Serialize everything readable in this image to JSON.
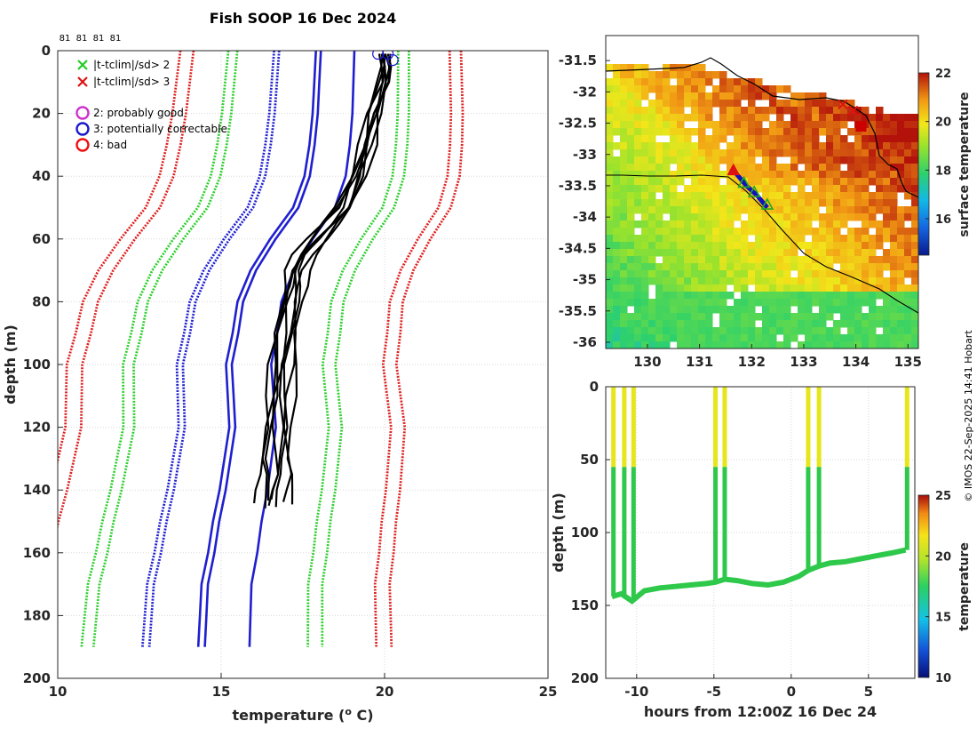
{
  "chart_data": [
    {
      "type": "line",
      "title": "Fish SOOP 16 Dec 2024",
      "xlabel": "temperature (",
      "xlabel_sup": "o",
      "xlabel_tail": " C)",
      "ylabel": "depth (m)",
      "xlim": [
        10,
        25
      ],
      "ylim": [
        0,
        200
      ],
      "xticks": [
        "10",
        "15",
        "20",
        "25"
      ],
      "yticks": [
        "0",
        "20",
        "40",
        "60",
        "80",
        "100",
        "120",
        "140",
        "160",
        "180",
        "200"
      ],
      "top_counts": [
        "81",
        "81",
        "81",
        "81"
      ],
      "legend": [
        {
          "marker": "x",
          "color": "#22cc22",
          "label": "|t-tclim|/sd> 2"
        },
        {
          "marker": "x",
          "color": "#dd1111",
          "label": "|t-tclim|/sd> 3"
        },
        {
          "marker": "o",
          "color": "#cc33cc",
          "label": "2: probably good"
        },
        {
          "marker": "o",
          "color": "#1a1acc",
          "label": "3: potentially correctable"
        },
        {
          "marker": "o",
          "color": "#ee1111",
          "label": "4: bad"
        }
      ],
      "series": [
        {
          "name": "clim-mean",
          "style": "solid",
          "color": "#1f1fd0",
          "offset": 0,
          "depth": [
            0,
            10,
            20,
            30,
            40,
            50,
            60,
            70,
            80,
            90,
            100,
            110,
            120,
            130,
            140,
            150,
            160,
            170,
            180,
            190
          ],
          "temp": [
            17.9,
            17.85,
            17.8,
            17.7,
            17.55,
            17.2,
            16.5,
            15.9,
            15.5,
            15.35,
            15.15,
            15.2,
            15.25,
            15.1,
            14.95,
            14.75,
            14.6,
            14.4,
            14.35,
            14.3
          ]
        },
        {
          "name": "clim-mean-b",
          "style": "solid",
          "color": "#1f1fd0",
          "offset": 0.15,
          "depth": [],
          "temp": []
        },
        {
          "name": "clim-1sd-low",
          "style": "dotted",
          "color": "#1f1fd0",
          "offset": -1.1,
          "depth": [],
          "temp": []
        },
        {
          "name": "clim-1sd-low-b",
          "style": "dotted",
          "color": "#1f1fd0",
          "offset": -1.25,
          "depth": [],
          "temp": []
        },
        {
          "name": "clim-1sd-high",
          "style": "solid",
          "color": "#1f1fd0",
          "offset": 1.15,
          "depth": [],
          "temp": []
        },
        {
          "name": "clim-2sd-low",
          "style": "dotted",
          "color": "#2fcf2f",
          "offset": -2.3,
          "depth": [],
          "temp": []
        },
        {
          "name": "clim-2sd-low-b",
          "style": "dotted",
          "color": "#2fcf2f",
          "offset": -2.55,
          "depth": [],
          "temp": []
        },
        {
          "name": "clim-2sd-high",
          "style": "dotted",
          "color": "#2fcf2f",
          "offset": 2.4,
          "depth": [],
          "temp": []
        },
        {
          "name": "clim-2sd-high-b",
          "style": "dotted",
          "color": "#2fcf2f",
          "offset": 2.7,
          "depth": [],
          "temp": []
        },
        {
          "name": "clim-3sd-low",
          "style": "dotted",
          "color": "#dd2222",
          "offset": -3.5,
          "depth": [],
          "temp": []
        },
        {
          "name": "clim-3sd-low-b",
          "style": "dotted",
          "color": "#dd2222",
          "offset": -3.85,
          "depth": [],
          "temp": []
        },
        {
          "name": "clim-3sd-high",
          "style": "dotted",
          "color": "#dd2222",
          "offset": 3.8,
          "depth": [],
          "temp": []
        },
        {
          "name": "clim-3sd-high-b",
          "style": "dotted",
          "color": "#dd2222",
          "offset": 4.1,
          "depth": [],
          "temp": []
        }
      ],
      "obs_profile": {
        "color": "#000000",
        "depth": [
          1,
          5,
          10,
          20,
          30,
          40,
          50,
          55,
          60,
          65,
          70,
          75,
          80,
          90,
          100,
          110,
          120,
          130,
          135,
          140,
          143
        ],
        "temp": [
          20.0,
          20.05,
          20.0,
          19.7,
          19.5,
          19.2,
          18.8,
          18.4,
          18.0,
          17.6,
          17.35,
          17.3,
          17.2,
          17.05,
          16.95,
          16.85,
          16.8,
          16.75,
          16.8,
          16.7,
          16.65
        ],
        "copies": [
          0,
          -0.25,
          0.2,
          -0.45,
          0.35,
          -0.15,
          0.1,
          -0.35
        ],
        "flag_points": [
          [
            19.8,
            1
          ],
          [
            20.1,
            1
          ],
          [
            20.25,
            3
          ]
        ]
      }
    },
    {
      "type": "heatmap",
      "kind": "map",
      "colorbar_label": "surface temperature",
      "colorbar_ticks": [
        "16",
        "18",
        "20",
        "22"
      ],
      "clim": [
        14.5,
        22
      ],
      "xlim": [
        129.2,
        135.2
      ],
      "ylim": [
        -36.1,
        -31.1
      ],
      "xticks": [
        "130",
        "131",
        "132",
        "133",
        "134",
        "135"
      ],
      "yticks": [
        "-31.5",
        "-32",
        "-32.5",
        "-33",
        "-33.5",
        "-34",
        "-34.5",
        "-35",
        "-35.5",
        "-36"
      ],
      "track": [
        [
          131.65,
          -33.25
        ],
        [
          131.9,
          -33.5
        ],
        [
          132.1,
          -33.65
        ],
        [
          132.3,
          -33.85
        ]
      ],
      "markers": [
        {
          "lon": 131.65,
          "lat": -33.25,
          "shape": "triangle",
          "color": "#dd1111"
        },
        {
          "lon": 131.85,
          "lat": -33.45,
          "shape": "triangle",
          "color": "#22aa22"
        },
        {
          "lon": 132.05,
          "lat": -33.6,
          "shape": "triangle",
          "color": "#22aa22"
        },
        {
          "lon": 132.3,
          "lat": -33.8,
          "shape": "triangle",
          "color": "#22aa22"
        },
        {
          "lon": 133.75,
          "lat": -32.2,
          "shape": "x",
          "color": "#dd1111"
        },
        {
          "lon": 133.95,
          "lat": -32.3,
          "shape": "x",
          "color": "#dd1111"
        },
        {
          "lon": 134.1,
          "lat": -32.55,
          "shape": "square",
          "color": "#cc0000"
        }
      ]
    },
    {
      "type": "scatter",
      "kind": "section",
      "xlabel": "hours from 12:00Z 16 Dec 24",
      "ylabel": "depth (m)",
      "colorbar_label": "temperature",
      "colorbar_ticks": [
        "10",
        "15",
        "20",
        "25"
      ],
      "clim": [
        10,
        25
      ],
      "xlim": [
        -12,
        8
      ],
      "ylim": [
        0,
        200
      ],
      "xticks": [
        "-10",
        "-5",
        "0",
        "5"
      ],
      "yticks": [
        "0",
        "50",
        "100",
        "150",
        "200"
      ],
      "casts": [
        -11.5,
        -10.8,
        -10.2,
        -4.9,
        -4.3,
        1.1,
        1.8,
        7.5
      ],
      "bottom": {
        "x": [
          -11.6,
          -11.0,
          -10.3,
          -9.5,
          -8.5,
          -7.5,
          -6.5,
          -5.5,
          -4.9,
          -4.3,
          -3.5,
          -2.5,
          -1.5,
          -0.5,
          0.5,
          1.1,
          1.8,
          2.5,
          3.5,
          4.5,
          5.5,
          6.5,
          7.4
        ],
        "depth": [
          144,
          142,
          147,
          140,
          138,
          137,
          136,
          135,
          134,
          132,
          133,
          135,
          136,
          134,
          130,
          126,
          123,
          121,
          120,
          118,
          116,
          114,
          112
        ]
      }
    }
  ],
  "credit": "© IMOS 22-Sep-2025 14:41 Hobart"
}
